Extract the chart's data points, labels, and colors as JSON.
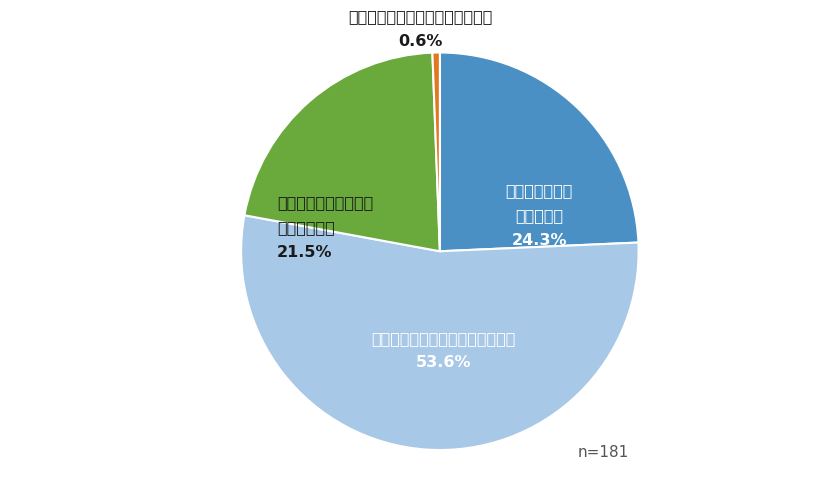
{
  "slices": [
    24.3,
    53.6,
    21.5,
    0.6
  ],
  "colors": [
    "#4a90c4",
    "#a8c8e8",
    "#6aaa3c",
    "#e07820"
  ],
  "label_inside_0": "接種促進効果は\n大きかった\n24.3%",
  "label_inside_1": "接種促進効果はそれなりにあった\n53.6%",
  "label_outside_2_line1": "接種促進効果の有無は",
  "label_outside_2_line2": "判断できない",
  "label_outside_2_line3": "21.5%",
  "label_outside_3_line1": "接種促進効果はまったくなかった",
  "label_outside_3_line2": "0.6%",
  "startangle": 90,
  "n_label": "n=181",
  "background_color": "#ffffff",
  "text_color_inside": "#ffffff",
  "text_color_outside": "#1a1a1a",
  "text_color_n": "#555555",
  "fontsize_inside": 11.5,
  "fontsize_outside": 11.5,
  "fontsize_n": 11
}
